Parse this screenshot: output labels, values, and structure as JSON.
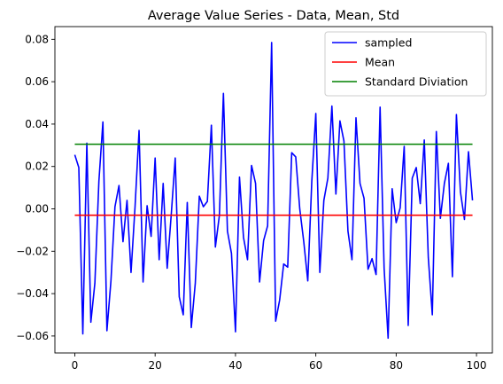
{
  "chart_data": {
    "type": "line",
    "title": "Average Value Series - Data, Mean, Std",
    "xlabel": "",
    "ylabel": "",
    "xlim": [
      -4.95,
      103.95
    ],
    "ylim": [
      -0.068,
      0.086
    ],
    "xticks": [
      0,
      20,
      40,
      60,
      80,
      100
    ],
    "xtick_labels": [
      "0",
      "20",
      "40",
      "60",
      "80",
      "100"
    ],
    "yticks": [
      -0.06,
      -0.04,
      -0.02,
      0.0,
      0.02,
      0.04,
      0.06,
      0.08
    ],
    "ytick_labels": [
      "−0.06",
      "−0.04",
      "−0.02",
      "0.00",
      "0.02",
      "0.04",
      "0.06",
      "0.08"
    ],
    "grid": false,
    "legend_position": "top-right",
    "series": [
      {
        "name": "sampled",
        "color": "#0000ff",
        "x": [
          0,
          1,
          2,
          3,
          4,
          5,
          6,
          7,
          8,
          9,
          10,
          11,
          12,
          13,
          14,
          15,
          16,
          17,
          18,
          19,
          20,
          21,
          22,
          23,
          24,
          25,
          26,
          27,
          28,
          29,
          30,
          31,
          32,
          33,
          34,
          35,
          36,
          37,
          38,
          39,
          40,
          41,
          42,
          43,
          44,
          45,
          46,
          47,
          48,
          49,
          50,
          51,
          52,
          53,
          54,
          55,
          56,
          57,
          58,
          59,
          60,
          61,
          62,
          63,
          64,
          65,
          66,
          67,
          68,
          69,
          70,
          71,
          72,
          73,
          74,
          75,
          76,
          77,
          78,
          79,
          80,
          81,
          82,
          83,
          84,
          85,
          86,
          87,
          88,
          89,
          90,
          91,
          92,
          93,
          94,
          95,
          96,
          97,
          98,
          99
        ],
        "values": [
          0.0255,
          0.0195,
          -0.059,
          0.031,
          -0.0535,
          -0.035,
          0.013,
          0.041,
          -0.0575,
          -0.034,
          0.001,
          0.011,
          -0.0155,
          0.004,
          -0.03,
          0.001,
          0.037,
          -0.0345,
          0.0015,
          -0.013,
          0.024,
          -0.024,
          0.012,
          -0.028,
          -0.003,
          0.024,
          -0.0415,
          -0.05,
          0.003,
          -0.056,
          -0.035,
          0.006,
          0.001,
          0.0035,
          0.0395,
          -0.018,
          -0.003,
          0.0545,
          -0.0105,
          -0.021,
          -0.058,
          0.015,
          -0.0135,
          -0.024,
          0.0205,
          0.012,
          -0.0345,
          -0.015,
          -0.008,
          0.0785,
          -0.053,
          -0.043,
          -0.026,
          -0.0275,
          0.0265,
          0.0245,
          0.0,
          -0.0155,
          -0.034,
          0.013,
          0.045,
          -0.03,
          0.004,
          0.0145,
          0.0485,
          0.007,
          0.0415,
          0.032,
          -0.0105,
          -0.024,
          0.043,
          0.012,
          0.005,
          -0.0285,
          -0.0235,
          -0.031,
          0.048,
          -0.028,
          -0.061,
          0.0095,
          -0.0065,
          0.0005,
          0.0295,
          -0.055,
          0.0145,
          0.0195,
          0.0025,
          0.0325,
          -0.023,
          -0.05,
          0.0365,
          -0.0045,
          0.012,
          0.0215,
          -0.032,
          0.0445,
          0.008,
          -0.005,
          0.027,
          0.004
        ]
      },
      {
        "name": "Mean",
        "color": "#ff0000",
        "x": [
          0,
          99
        ],
        "values": [
          -0.003,
          -0.003
        ]
      },
      {
        "name": "Standard Diviation",
        "color": "#008000",
        "x": [
          0,
          99
        ],
        "values": [
          0.0305,
          0.0305
        ]
      }
    ]
  }
}
